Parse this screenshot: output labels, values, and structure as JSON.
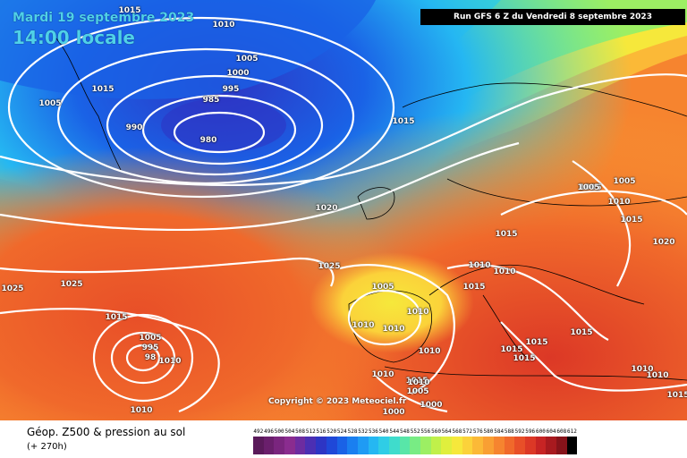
{
  "header": {
    "date_label": "Mardi 19 septembre 2023",
    "time_label": "14:00 locale",
    "run_label": "Run GFS 6 Z du Vendredi 8 septembre 2023"
  },
  "copyright": "Copyright © 2023 Meteociel.fr",
  "legend": {
    "title": "Géop. Z500 & pression au sol",
    "subtitle": "(+ 270h)",
    "unit_note": "",
    "scale": [
      {
        "label": "492",
        "color": "#5a1a5a"
      },
      {
        "label": "496",
        "color": "#6a1f6c"
      },
      {
        "label": "500",
        "color": "#7a257e"
      },
      {
        "label": "504",
        "color": "#8a2c8f"
      },
      {
        "label": "508",
        "color": "#6d2ca0"
      },
      {
        "label": "512",
        "color": "#4b2fb3"
      },
      {
        "label": "516",
        "color": "#2d35c4"
      },
      {
        "label": "520",
        "color": "#1f48d8"
      },
      {
        "label": "524",
        "color": "#1a62e6"
      },
      {
        "label": "528",
        "color": "#1a7ff0"
      },
      {
        "label": "532",
        "color": "#1f9bf4"
      },
      {
        "label": "536",
        "color": "#25b7f2"
      },
      {
        "label": "540",
        "color": "#2fcde6"
      },
      {
        "label": "544",
        "color": "#3fdccc"
      },
      {
        "label": "548",
        "color": "#58e6a8"
      },
      {
        "label": "552",
        "color": "#78ec84"
      },
      {
        "label": "556",
        "color": "#9cef63"
      },
      {
        "label": "560",
        "color": "#c0f04a"
      },
      {
        "label": "564",
        "color": "#e0ef3d"
      },
      {
        "label": "568",
        "color": "#f6e83b"
      },
      {
        "label": "572",
        "color": "#fbd23a"
      },
      {
        "label": "576",
        "color": "#fbb937"
      },
      {
        "label": "580",
        "color": "#f99f33"
      },
      {
        "label": "584",
        "color": "#f6842f"
      },
      {
        "label": "588",
        "color": "#f0692b"
      },
      {
        "label": "592",
        "color": "#e84f28"
      },
      {
        "label": "596",
        "color": "#dc3826"
      },
      {
        "label": "600",
        "color": "#c72424"
      },
      {
        "label": "604",
        "color": "#a81a1f"
      },
      {
        "label": "608",
        "color": "#86131a"
      },
      {
        "label": "612",
        "color": "#000000"
      }
    ]
  },
  "isobars": {
    "l01": "1015",
    "l02": "1010",
    "l03": "1005",
    "l04": "1015",
    "l05": "1005",
    "l06": "1000",
    "l07": "995",
    "l08": "985",
    "l09": "990",
    "l10": "980",
    "l11": "1015",
    "l12": "1020",
    "l13": "1025",
    "l14": "1025",
    "l15": "1025",
    "l16": "1015",
    "l17": "1005",
    "l18": "995",
    "l19": "98",
    "l20": "1010",
    "l21": "1010",
    "l22": "1005",
    "l23": "1010",
    "l24": "1010",
    "l25": "1010",
    "l26": "1010",
    "l27": "1010",
    "l28": "1010",
    "l29": "1015",
    "l30": "1015",
    "l31": "1010",
    "l32": "1015",
    "l33": "1015",
    "l34": "1015",
    "l35": "1015",
    "l36": "1015",
    "l37": "1010",
    "l38": "1005",
    "l39": "1000",
    "l40": "1000",
    "l41": "1005",
    "l42": "1010",
    "l43": "1005",
    "l44": "1005",
    "l45": "1015",
    "l46": "1020",
    "l47": "1010",
    "l48": "1015",
    "l49": "1010"
  }
}
